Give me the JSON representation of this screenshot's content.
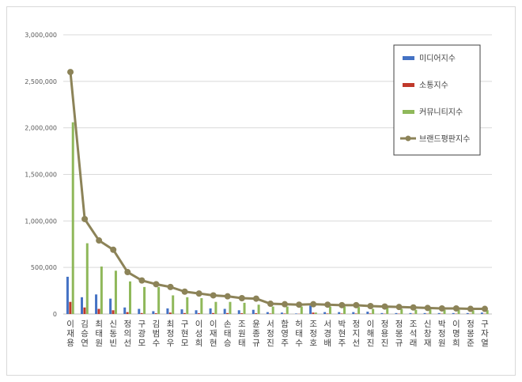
{
  "chart_data": {
    "type": "bar",
    "title": "",
    "xlabel": "",
    "ylabel": "",
    "ylim": [
      0,
      3000000
    ],
    "y_ticks": [
      "0",
      "500,000",
      "1,000,000",
      "1,500,000",
      "2,000,000",
      "2,500,000",
      "3,000,000"
    ],
    "y_tick_values": [
      0,
      500000,
      1000000,
      1500000,
      2000000,
      2500000,
      3000000
    ],
    "grid": true,
    "legend_position": "top-right",
    "categories": [
      "이재용",
      "김승연",
      "최태원",
      "신동빈",
      "정의선",
      "구광모",
      "김범수",
      "최정우",
      "구현모",
      "이성희",
      "이재현",
      "손태승",
      "조원태",
      "윤종규",
      "서정진",
      "함영주",
      "허태수",
      "조정호",
      "서경배",
      "박현주",
      "정지선",
      "이해진",
      "정용진",
      "정몽규",
      "조석래",
      "신창재",
      "박정원",
      "이명희",
      "정몽준",
      "구자열"
    ],
    "series": [
      {
        "name": "미디어지수",
        "type": "bar",
        "color": "#4472c4",
        "values": [
          400000,
          180000,
          210000,
          165000,
          70000,
          55000,
          30000,
          60000,
          50000,
          40000,
          60000,
          55000,
          40000,
          45000,
          20000,
          15000,
          5000,
          90000,
          20000,
          20000,
          20000,
          25000,
          10000,
          10000,
          10000,
          10000,
          10000,
          10000,
          10000,
          15000
        ]
      },
      {
        "name": "소통지수",
        "type": "bar",
        "color": "#c0392b",
        "values": [
          130000,
          70000,
          55000,
          40000,
          20000,
          10000,
          8000,
          15000,
          10000,
          8000,
          10000,
          10000,
          8000,
          8000,
          5000,
          5000,
          2000,
          15000,
          5000,
          5000,
          5000,
          5000,
          3000,
          3000,
          3000,
          3000,
          3000,
          3000,
          3000,
          3000
        ]
      },
      {
        "name": "커뮤니티지수",
        "type": "bar",
        "color": "#8fb85a",
        "values": [
          2060000,
          760000,
          510000,
          465000,
          350000,
          290000,
          290000,
          200000,
          180000,
          170000,
          130000,
          130000,
          120000,
          100000,
          80000,
          80000,
          80000,
          15000,
          80000,
          80000,
          75000,
          55000,
          70000,
          55000,
          45000,
          50000,
          45000,
          45000,
          40000,
          40000
        ]
      },
      {
        "name": "브랜드평판지수",
        "type": "line",
        "color": "#8c8358",
        "values": [
          2600000,
          1020000,
          790000,
          690000,
          450000,
          360000,
          320000,
          290000,
          240000,
          220000,
          200000,
          190000,
          170000,
          165000,
          110000,
          105000,
          100000,
          105000,
          100000,
          95000,
          95000,
          85000,
          80000,
          75000,
          70000,
          65000,
          60000,
          60000,
          55000,
          55000
        ]
      }
    ]
  }
}
